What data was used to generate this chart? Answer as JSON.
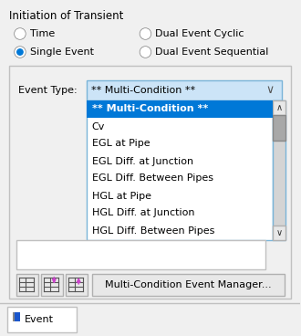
{
  "title": "Initiation of Transient",
  "bg_color": "#f0f0f0",
  "white": "#ffffff",
  "event_type_label": "Event Type:",
  "event_type_value": "** Multi-Condition **",
  "dropdown_bg": "#cce4f7",
  "dropdown_border": "#7ab4d8",
  "selected_item": "** Multi-Condition **",
  "selected_bg": "#0078d7",
  "selected_fg": "#ffffff",
  "list_items": [
    "** Multi-Condition **",
    "Cv",
    "EGL at Pipe",
    "EGL Diff. at Junction",
    "EGL Diff. Between Pipes",
    "HGL at Pipe",
    "HGL Diff. at Junction",
    "HGL Diff. Between Pipes"
  ],
  "list_bg": "#ffffff",
  "list_border": "#7ab4d8",
  "inner_box_border": "#c0c0c0",
  "button_label": "Multi-Condition Event Manager...",
  "tab_label": "Event",
  "tab_bg": "#ffffff",
  "scrollbar_bg": "#d4d4d4",
  "scrollbar_thumb": "#a8a8a8"
}
